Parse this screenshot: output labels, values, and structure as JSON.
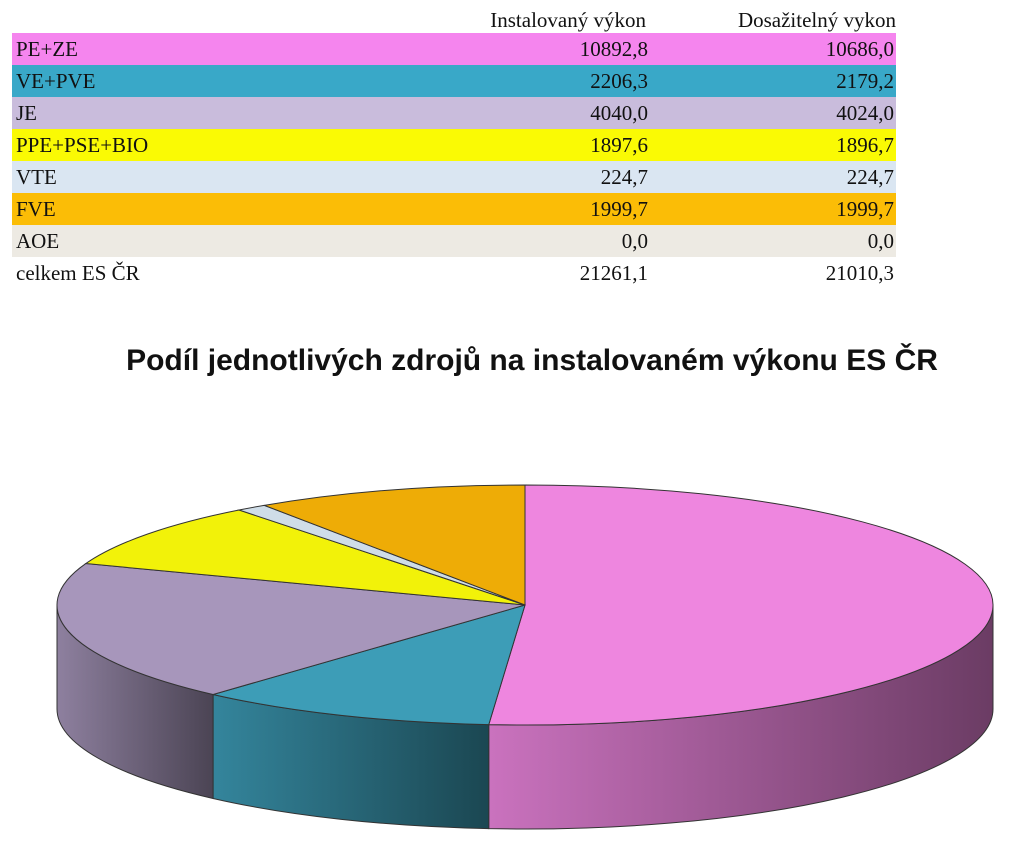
{
  "table": {
    "headers": [
      "",
      "Instalovaný výkon",
      "Dosažitelný vykon"
    ],
    "rows": [
      {
        "label": "PE+ZE",
        "installed": "10892,8",
        "achievable": "10686,0",
        "color": "#f585ee"
      },
      {
        "label": "VE+PVE",
        "installed": "2206,3",
        "achievable": "2179,2",
        "color": "#39a8c8"
      },
      {
        "label": "JE",
        "installed": "4040,0",
        "achievable": "4024,0",
        "color": "#c9bcdc"
      },
      {
        "label": "PPE+PSE+BIO",
        "installed": "1897,6",
        "achievable": "1896,7",
        "color": "#fafa04"
      },
      {
        "label": "VTE",
        "installed": "224,7",
        "achievable": "224,7",
        "color": "#dae6f2"
      },
      {
        "label": "FVE",
        "installed": "1999,7",
        "achievable": "1999,7",
        "color": "#fbbd06"
      },
      {
        "label": "AOE",
        "installed": "0,0",
        "achievable": "0,0",
        "color": "#edeae3"
      },
      {
        "label": "celkem ES ČR",
        "installed": "21261,1",
        "achievable": "21010,3",
        "color": "#ffffff"
      }
    ]
  },
  "chart_data": {
    "type": "pie",
    "title": "Podíl jednotlivých zdrojů na instalovaném výkonu ES ČR",
    "categories": [
      "PE+ZE",
      "VE+PVE",
      "JE",
      "PPE+PSE+BIO",
      "VTE",
      "FVE",
      "AOE"
    ],
    "values": [
      10892.8,
      2206.3,
      4040.0,
      1897.6,
      224.7,
      1999.7,
      0.0
    ],
    "colors": [
      "#ee86df",
      "#3d9db7",
      "#a796bb",
      "#f2f209",
      "#cfdde8",
      "#eeac06",
      "#e8e4dc"
    ],
    "style": "3d"
  }
}
